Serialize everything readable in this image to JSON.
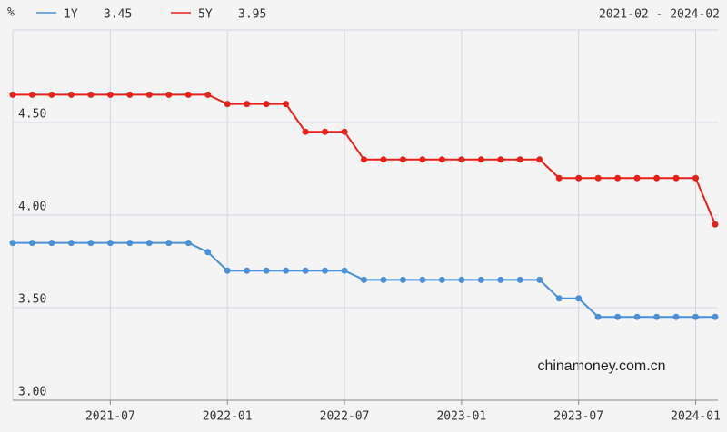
{
  "chart_data": {
    "type": "line",
    "y_label": "%",
    "date_range": "2021-02 - 2024-02",
    "watermark": "chinamoney.com.cn",
    "categories": [
      null,
      null,
      null,
      null,
      null,
      "2021-07",
      null,
      null,
      null,
      null,
      null,
      "2022-01",
      null,
      null,
      null,
      null,
      null,
      "2022-07",
      null,
      null,
      null,
      null,
      null,
      "2023-01",
      null,
      null,
      null,
      null,
      null,
      "2023-07",
      null,
      null,
      null,
      null,
      null,
      "2024-01",
      null
    ],
    "series": [
      {
        "name": "1Y",
        "color": "#4a90d9",
        "values": [
          3.85,
          3.85,
          3.85,
          3.85,
          3.85,
          3.85,
          3.85,
          3.85,
          3.85,
          3.85,
          3.8,
          3.7,
          3.7,
          3.7,
          3.7,
          3.7,
          3.7,
          3.7,
          3.65,
          3.65,
          3.65,
          3.65,
          3.65,
          3.65,
          3.65,
          3.65,
          3.65,
          3.65,
          3.55,
          3.55,
          3.45,
          3.45,
          3.45,
          3.45,
          3.45,
          3.45,
          3.45
        ]
      },
      {
        "name": "5Y",
        "color": "#e8201a",
        "values": [
          4.65,
          4.65,
          4.65,
          4.65,
          4.65,
          4.65,
          4.65,
          4.65,
          4.65,
          4.65,
          4.65,
          4.6,
          4.6,
          4.6,
          4.6,
          4.45,
          4.45,
          4.45,
          4.3,
          4.3,
          4.3,
          4.3,
          4.3,
          4.3,
          4.3,
          4.3,
          4.3,
          4.3,
          4.2,
          4.2,
          4.2,
          4.2,
          4.2,
          4.2,
          4.2,
          4.2,
          3.95
        ]
      }
    ],
    "ylim": [
      3.0,
      5.0
    ],
    "yticks": [
      {
        "value": 3.0,
        "label": "3.00"
      },
      {
        "value": 3.5,
        "label": "3.50"
      },
      {
        "value": 4.0,
        "label": "4.00"
      },
      {
        "value": 4.5,
        "label": "4.50"
      }
    ],
    "grid": true
  }
}
